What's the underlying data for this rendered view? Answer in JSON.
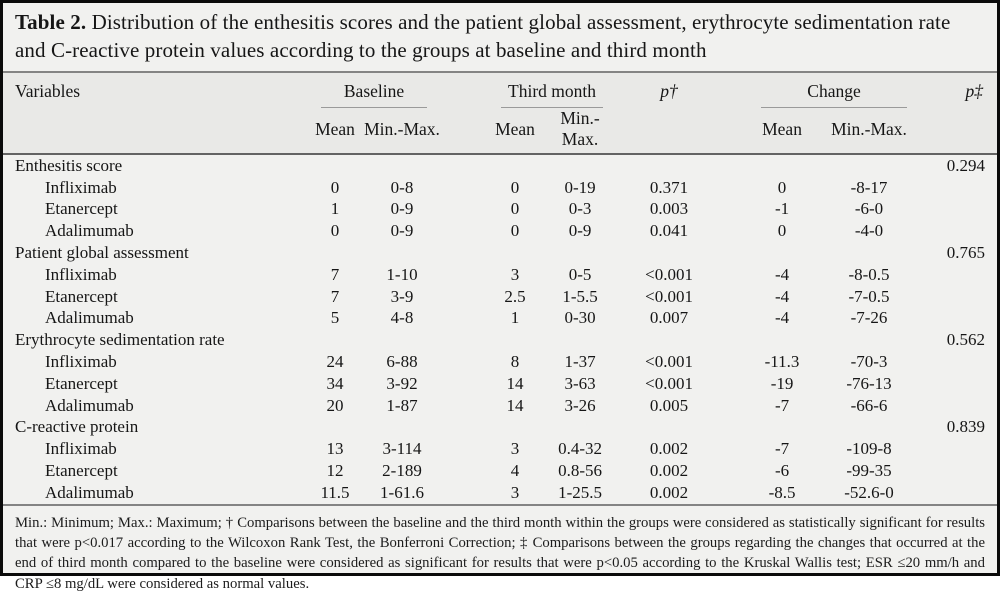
{
  "title": {
    "label": "Table 2.",
    "text": "Distribution of the enthesitis scores and the patient global assessment, erythrocyte sedimentation rate and C-reactive protein values according to the groups at baseline and third month"
  },
  "header": {
    "variables": "Variables",
    "groups": [
      {
        "label": "Baseline",
        "cols": [
          "Mean",
          "Min.-Max."
        ]
      },
      {
        "label": "Third month",
        "cols": [
          "Mean",
          "Min.-Max."
        ]
      },
      {
        "label": "Change",
        "cols": [
          "Mean",
          "Min.-Max."
        ]
      }
    ],
    "p_dagger": "p†",
    "p_ddagger": "p‡"
  },
  "sections": [
    {
      "label": "Enthesitis score",
      "p2": "0.294",
      "rows": [
        {
          "label": "Infliximab",
          "b_mean": "0",
          "b_minmax": "0-8",
          "t_mean": "0",
          "t_minmax": "0-19",
          "p1": "0.371",
          "c_mean": "0",
          "c_minmax": "-8-17"
        },
        {
          "label": "Etanercept",
          "b_mean": "1",
          "b_minmax": "0-9",
          "t_mean": "0",
          "t_minmax": "0-3",
          "p1": "0.003",
          "c_mean": "-1",
          "c_minmax": "-6-0"
        },
        {
          "label": "Adalimumab",
          "b_mean": "0",
          "b_minmax": "0-9",
          "t_mean": "0",
          "t_minmax": "0-9",
          "p1": "0.041",
          "c_mean": "0",
          "c_minmax": "-4-0"
        }
      ]
    },
    {
      "label": "Patient global assessment",
      "p2": "0.765",
      "rows": [
        {
          "label": "Infliximab",
          "b_mean": "7",
          "b_minmax": "1-10",
          "t_mean": "3",
          "t_minmax": "0-5",
          "p1": "<0.001",
          "c_mean": "-4",
          "c_minmax": "-8-0.5"
        },
        {
          "label": "Etanercept",
          "b_mean": "7",
          "b_minmax": "3-9",
          "t_mean": "2.5",
          "t_minmax": "1-5.5",
          "p1": "<0.001",
          "c_mean": "-4",
          "c_minmax": "-7-0.5"
        },
        {
          "label": "Adalimumab",
          "b_mean": "5",
          "b_minmax": "4-8",
          "t_mean": "1",
          "t_minmax": "0-30",
          "p1": "0.007",
          "c_mean": "-4",
          "c_minmax": "-7-26"
        }
      ]
    },
    {
      "label": "Erythrocyte sedimentation rate",
      "p2": "0.562",
      "rows": [
        {
          "label": "Infliximab",
          "b_mean": "24",
          "b_minmax": "6-88",
          "t_mean": "8",
          "t_minmax": "1-37",
          "p1": "<0.001",
          "c_mean": "-11.3",
          "c_minmax": "-70-3"
        },
        {
          "label": "Etanercept",
          "b_mean": "34",
          "b_minmax": "3-92",
          "t_mean": "14",
          "t_minmax": "3-63",
          "p1": "<0.001",
          "c_mean": "-19",
          "c_minmax": "-76-13"
        },
        {
          "label": "Adalimumab",
          "b_mean": "20",
          "b_minmax": "1-87",
          "t_mean": "14",
          "t_minmax": "3-26",
          "p1": "0.005",
          "c_mean": "-7",
          "c_minmax": "-66-6"
        }
      ]
    },
    {
      "label": "C-reactive protein",
      "p2": "0.839",
      "rows": [
        {
          "label": "Infliximab",
          "b_mean": "13",
          "b_minmax": "3-114",
          "t_mean": "3",
          "t_minmax": "0.4-32",
          "p1": "0.002",
          "c_mean": "-7",
          "c_minmax": "-109-8"
        },
        {
          "label": "Etanercept",
          "b_mean": "12",
          "b_minmax": "2-189",
          "t_mean": "4",
          "t_minmax": "0.8-56",
          "p1": "0.002",
          "c_mean": "-6",
          "c_minmax": "-99-35"
        },
        {
          "label": "Adalimumab",
          "b_mean": "11.5",
          "b_minmax": "1-61.6",
          "t_mean": "3",
          "t_minmax": "1-25.5",
          "p1": "0.002",
          "c_mean": "-8.5",
          "c_minmax": "-52.6-0"
        }
      ]
    }
  ],
  "footnote": "Min.: Minimum; Max.: Maximum; † Comparisons between the baseline and the third month within the groups were considered as statistically significant for results that were p<0.017 according to the Wilcoxon Rank Test, the Bonferroni Correction; ‡ Comparisons between the groups regarding the changes that occurred at the end of third month compared to the baseline were considered as significant for results that were p<0.05 according to the Kruskal Wallis test; ESR ≤20 mm/h and CRP ≤8 mg/dL were considered as normal values."
}
